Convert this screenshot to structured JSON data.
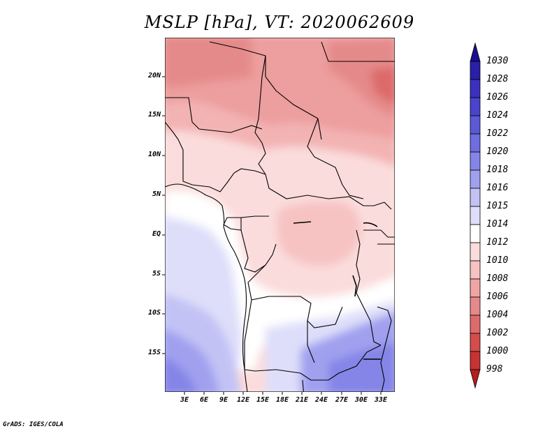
{
  "header": {
    "title": "MSLP [hPa], VT: 2020062609"
  },
  "map": {
    "variable": "MSLP",
    "units": "hPa",
    "valid_time": "2020062609",
    "lat_labels": [
      "20N",
      "15N",
      "10N",
      "5N",
      "EQ",
      "5S",
      "10S",
      "15S"
    ],
    "lon_labels": [
      "3E",
      "6E",
      "9E",
      "12E",
      "15E",
      "18E",
      "21E",
      "24E",
      "27E",
      "30E",
      "33E"
    ]
  },
  "colorbar": {
    "labels": [
      "1030",
      "1028",
      "1026",
      "1024",
      "1022",
      "1020",
      "1018",
      "1016",
      "1015",
      "1014",
      "1012",
      "1010",
      "1008",
      "1006",
      "1004",
      "1002",
      "1000",
      "998"
    ],
    "colors": [
      "#1a0f8f",
      "#2a1fa8",
      "#3b31bd",
      "#4a44cc",
      "#5b59d6",
      "#6e6ee0",
      "#8585e8",
      "#a0a0ef",
      "#c2c2f5",
      "#dedefa",
      "#ffffff",
      "#fbdcdc",
      "#f7c2c2",
      "#f0a5a5",
      "#e58a8a",
      "#dd6b6b",
      "#d44c4c",
      "#c73232",
      "#b41e1e"
    ]
  },
  "footer": {
    "credit": "GrADS: IGES/COLA"
  }
}
